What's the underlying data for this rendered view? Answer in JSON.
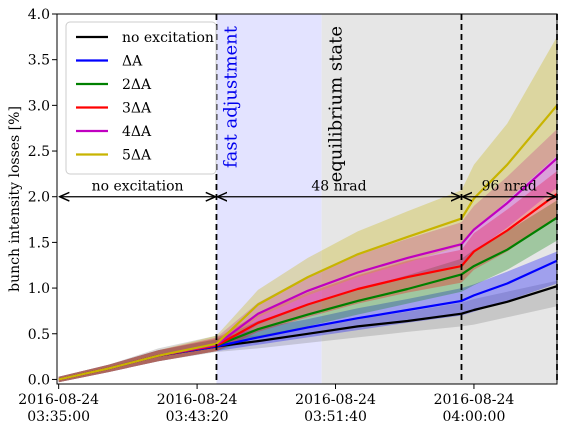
{
  "chart_data": {
    "type": "line",
    "title": "",
    "xlabel": "",
    "ylabel": "bunch intensity losses [%]",
    "xlim": [
      "2016-08-24 03:34:54",
      "2016-08-24 04:05:00"
    ],
    "ylim": [
      -0.05,
      4.0
    ],
    "y_ticks": [
      0.0,
      0.5,
      1.0,
      1.5,
      2.0,
      2.5,
      3.0,
      3.5,
      4.0
    ],
    "y_tick_labels": [
      "0.0",
      "0.5",
      "1.0",
      "1.5",
      "2.0",
      "2.5",
      "3.0",
      "3.5",
      "4.0"
    ],
    "x_ticks": [
      "2016-08-24 03:35:00",
      "2016-08-24 03:43:20",
      "2016-08-24 03:51:40",
      "2016-08-24 04:00:00"
    ],
    "x_tick_labels": [
      [
        "2016-08-24",
        "03:35:00"
      ],
      [
        "2016-08-24",
        "03:43:20"
      ],
      [
        "2016-08-24",
        "03:51:40"
      ],
      [
        "2016-08-24",
        "04:00:00"
      ]
    ],
    "grid": false,
    "legend_position": "top-left",
    "regions": [
      {
        "label": "fast adjustment",
        "start": "2016-08-24 03:44:30",
        "end": "2016-08-24 03:50:50",
        "color": "#e3e3ff",
        "label_color": "#0000ee"
      },
      {
        "label": "equilibrium state",
        "start": "2016-08-24 03:50:50",
        "end": "2016-08-24 04:05:00",
        "color": "#e6e6e6",
        "label_color": "#000000"
      }
    ],
    "vlines": [
      "2016-08-24 03:44:30",
      "2016-08-24 03:59:15",
      "2016-08-24 04:05:00"
    ],
    "intervals": [
      {
        "label": "no excitation",
        "start": "2016-08-24 03:35:00",
        "end": "2016-08-24 03:44:30",
        "y": 2.0
      },
      {
        "label": "48 nrad",
        "start": "2016-08-24 03:44:30",
        "end": "2016-08-24 03:59:15",
        "y": 2.0
      },
      {
        "label": "96 nrad",
        "start": "2016-08-24 03:59:15",
        "end": "2016-08-24 04:05:00",
        "y": 2.0
      }
    ],
    "x": [
      "2016-08-24 03:35:00",
      "2016-08-24 03:38:00",
      "2016-08-24 03:41:00",
      "2016-08-24 03:44:30",
      "2016-08-24 03:47:00",
      "2016-08-24 03:50:00",
      "2016-08-24 03:53:00",
      "2016-08-24 03:56:00",
      "2016-08-24 03:59:15",
      "2016-08-24 04:00:00",
      "2016-08-24 04:02:00",
      "2016-08-24 04:05:00"
    ],
    "series": [
      {
        "name": "no excitation",
        "color": "#000000",
        "band_color": "#808080",
        "values": [
          0.0,
          0.12,
          0.26,
          0.36,
          0.42,
          0.5,
          0.58,
          0.64,
          0.72,
          0.76,
          0.85,
          1.02
        ],
        "band_low": [
          -0.03,
          0.08,
          0.2,
          0.3,
          0.34,
          0.4,
          0.46,
          0.52,
          0.58,
          0.6,
          0.68,
          0.8
        ],
        "band_high": [
          0.03,
          0.16,
          0.34,
          0.48,
          0.48,
          0.58,
          0.66,
          0.74,
          0.84,
          0.88,
          0.96,
          1.08
        ]
      },
      {
        "name": "ΔA",
        "color": "#0000ff",
        "band_color": "#0000ff",
        "values": [
          0.0,
          0.12,
          0.26,
          0.36,
          0.46,
          0.57,
          0.67,
          0.76,
          0.86,
          0.92,
          1.05,
          1.3
        ],
        "band_low": [
          -0.03,
          0.08,
          0.2,
          0.31,
          0.38,
          0.46,
          0.54,
          0.62,
          0.7,
          0.74,
          0.86,
          1.05
        ],
        "band_high": [
          0.03,
          0.16,
          0.32,
          0.44,
          0.56,
          0.66,
          0.78,
          0.88,
          1.0,
          1.04,
          1.18,
          1.4
        ]
      },
      {
        "name": "2ΔA",
        "color": "#008000",
        "band_color": "#008000",
        "values": [
          0.0,
          0.12,
          0.26,
          0.37,
          0.55,
          0.71,
          0.86,
          0.99,
          1.15,
          1.24,
          1.42,
          1.77
        ],
        "band_low": [
          -0.03,
          0.08,
          0.2,
          0.31,
          0.46,
          0.58,
          0.71,
          0.83,
          0.96,
          1.03,
          1.2,
          1.52
        ],
        "band_high": [
          0.03,
          0.16,
          0.32,
          0.44,
          0.64,
          0.82,
          0.99,
          1.14,
          1.32,
          1.42,
          1.62,
          1.96
        ]
      },
      {
        "name": "3ΔA",
        "color": "#ff0000",
        "band_color": "#ff0000",
        "values": [
          0.0,
          0.12,
          0.26,
          0.37,
          0.62,
          0.82,
          0.99,
          1.12,
          1.24,
          1.4,
          1.63,
          2.03
        ],
        "band_low": [
          -0.03,
          0.08,
          0.2,
          0.31,
          0.52,
          0.68,
          0.83,
          0.95,
          1.06,
          1.2,
          1.4,
          1.78
        ],
        "band_high": [
          0.03,
          0.16,
          0.32,
          0.45,
          0.72,
          0.95,
          1.14,
          1.3,
          1.42,
          1.6,
          1.86,
          2.28
        ]
      },
      {
        "name": "4ΔA",
        "color": "#c000c0",
        "band_color": "#c000c0",
        "values": [
          0.0,
          0.12,
          0.26,
          0.38,
          0.72,
          0.97,
          1.17,
          1.33,
          1.48,
          1.64,
          1.93,
          2.42
        ],
        "band_low": [
          -0.03,
          0.08,
          0.2,
          0.31,
          0.6,
          0.81,
          0.98,
          1.12,
          1.26,
          1.4,
          1.66,
          2.1
        ],
        "band_high": [
          0.03,
          0.16,
          0.32,
          0.46,
          0.84,
          1.13,
          1.36,
          1.54,
          1.72,
          1.9,
          2.22,
          2.74
        ]
      },
      {
        "name": "5ΔA",
        "color": "#c8b400",
        "band_color": "#c8b400",
        "values": [
          0.0,
          0.12,
          0.26,
          0.39,
          0.82,
          1.12,
          1.37,
          1.56,
          1.76,
          1.98,
          2.35,
          3.0
        ],
        "band_low": [
          -0.03,
          0.08,
          0.2,
          0.31,
          0.68,
          0.92,
          1.12,
          1.28,
          1.46,
          1.62,
          1.96,
          2.45
        ],
        "band_high": [
          0.03,
          0.16,
          0.32,
          0.48,
          0.98,
          1.33,
          1.62,
          1.84,
          2.07,
          2.35,
          2.8,
          3.75
        ]
      }
    ]
  }
}
